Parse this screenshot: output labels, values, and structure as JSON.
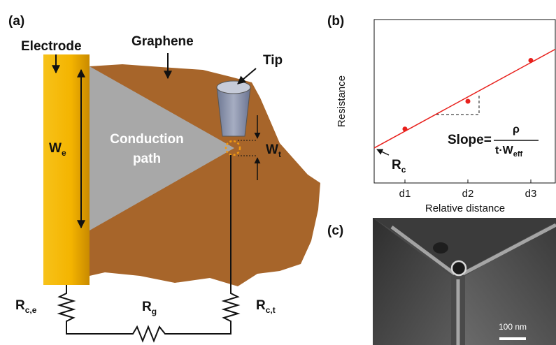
{
  "panels": {
    "a": "(a)",
    "b": "(b)",
    "c": "(c)"
  },
  "diagram": {
    "labels": {
      "electrode": "Electrode",
      "graphene": "Graphene",
      "tip": "Tip",
      "conduction": [
        "Conduction",
        "path"
      ]
    },
    "widths": {
      "we": {
        "main": "W",
        "sub": "e"
      },
      "wt": {
        "main": "W",
        "sub": "t"
      }
    },
    "resistors": [
      {
        "main": "R",
        "sub": "c,e"
      },
      {
        "main": "R",
        "sub": "g"
      },
      {
        "main": "R",
        "sub": "c,t"
      }
    ]
  },
  "chart_data": {
    "type": "scatter",
    "x_label": "Relative distance",
    "y_label": "Resistance",
    "categories": [
      "d1",
      "d2",
      "d3"
    ],
    "values": [
      3.3,
      5.0,
      7.5
    ],
    "color": "#e8201c",
    "fit_line": true,
    "ylim": [
      0,
      10
    ],
    "annotations": {
      "intercept": {
        "main": "R",
        "sub": "c"
      },
      "slope": {
        "lhs": "Slope=",
        "numerator": "ρ",
        "denominator": "t·W",
        "denominator_sub": "eff"
      }
    }
  },
  "image": {
    "scale_bar": "100 nm"
  }
}
